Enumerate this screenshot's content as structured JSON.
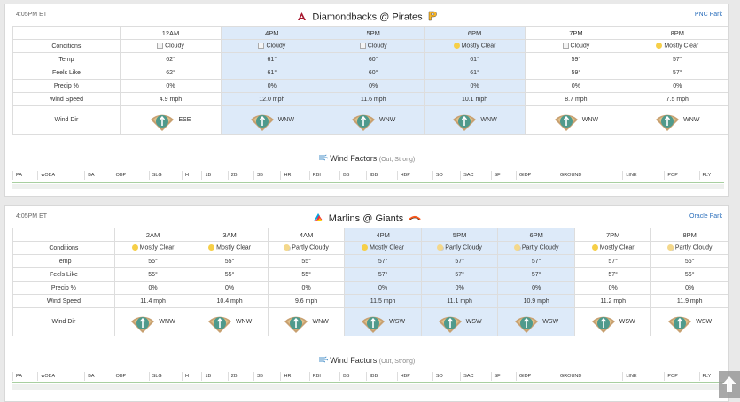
{
  "games": [
    {
      "time": "4:05PM ET",
      "venue": "PNC Park",
      "away": "Diamondbacks",
      "sep": "@",
      "home": "Pirates",
      "hours": [
        "12AM",
        "4PM",
        "5PM",
        "6PM",
        "7PM",
        "8PM"
      ],
      "highlight": [
        false,
        true,
        true,
        true,
        false,
        false
      ],
      "rows": {
        "conditions_label": "Conditions",
        "temp_label": "Temp",
        "feels_label": "Feels Like",
        "precip_label": "Precip %",
        "wind_speed_label": "Wind Speed",
        "wind_dir_label": "Wind Dir"
      },
      "conditions": [
        "Cloudy",
        "Cloudy",
        "Cloudy",
        "Mostly Clear",
        "Cloudy",
        "Mostly Clear"
      ],
      "cond_icons": [
        "broken",
        "broken",
        "broken",
        "sun",
        "broken",
        "sun"
      ],
      "temp": [
        "62°",
        "61°",
        "60°",
        "61°",
        "59°",
        "57°"
      ],
      "feels": [
        "62°",
        "61°",
        "60°",
        "61°",
        "59°",
        "57°"
      ],
      "precip": [
        "0%",
        "0%",
        "0%",
        "0%",
        "0%",
        "0%"
      ],
      "wind_speed": [
        "4.9 mph",
        "12.0 mph",
        "11.6 mph",
        "10.1 mph",
        "8.7 mph",
        "7.5 mph"
      ],
      "wind_dir": [
        "ESE",
        "WNW",
        "WNW",
        "WNW",
        "WNW",
        "WNW"
      ],
      "wind_factors_title": "Wind Factors",
      "wind_factors_sub": "(Out, Strong)"
    },
    {
      "time": "4:05PM ET",
      "venue": "Oracle Park",
      "away": "Marlins",
      "sep": "@",
      "home": "Giants",
      "hours": [
        "2AM",
        "3AM",
        "4AM",
        "4PM",
        "5PM",
        "6PM",
        "7PM",
        "8PM"
      ],
      "highlight": [
        false,
        false,
        false,
        true,
        true,
        true,
        false,
        false
      ],
      "rows": {
        "conditions_label": "Conditions",
        "temp_label": "Temp",
        "feels_label": "Feels Like",
        "precip_label": "Precip %",
        "wind_speed_label": "Wind Speed",
        "wind_dir_label": "Wind Dir"
      },
      "conditions": [
        "Mostly Clear",
        "Mostly Clear",
        "Partly Cloudy",
        "Mostly Clear",
        "Partly Cloudy",
        "Partly Cloudy",
        "Mostly Clear",
        "Partly Cloudy"
      ],
      "cond_icons": [
        "sun",
        "sun",
        "psun",
        "sun",
        "psun",
        "psun",
        "sun",
        "psun"
      ],
      "temp": [
        "55°",
        "55°",
        "55°",
        "57°",
        "57°",
        "57°",
        "57°",
        "56°"
      ],
      "feels": [
        "55°",
        "55°",
        "55°",
        "57°",
        "57°",
        "57°",
        "57°",
        "56°"
      ],
      "precip": [
        "0%",
        "0%",
        "0%",
        "0%",
        "0%",
        "0%",
        "0%",
        "0%"
      ],
      "wind_speed": [
        "11.4 mph",
        "10.4 mph",
        "9.6 mph",
        "11.5 mph",
        "11.1 mph",
        "10.9 mph",
        "11.2 mph",
        "11.9 mph"
      ],
      "wind_dir": [
        "WNW",
        "WNW",
        "WNW",
        "WSW",
        "WSW",
        "WSW",
        "WSW",
        "WSW"
      ],
      "wind_factors_title": "Wind Factors",
      "wind_factors_sub": "(Out, Strong)"
    }
  ],
  "stat_columns": [
    "PA",
    "wOBA",
    "BA",
    "OBP",
    "SLG",
    "H",
    "1B",
    "2B",
    "3B",
    "HR",
    "RBI",
    "BB",
    "IBB",
    "HBP",
    "SO",
    "SAC",
    "SF",
    "GIDP",
    "GROUND",
    "LINE",
    "POP",
    "FLY"
  ],
  "colors": {
    "highlight": "#ddeaf9",
    "link": "#2a6ebb",
    "sun": "#f6cf48",
    "field_dirt": "#c8a070",
    "field_grass": "#4f9a8c"
  },
  "icons": [
    "diamondbacks-logo",
    "pirates-logo",
    "marlins-logo",
    "giants-logo",
    "wind-icon",
    "baseball-field-icon",
    "arrow-up-icon"
  ]
}
